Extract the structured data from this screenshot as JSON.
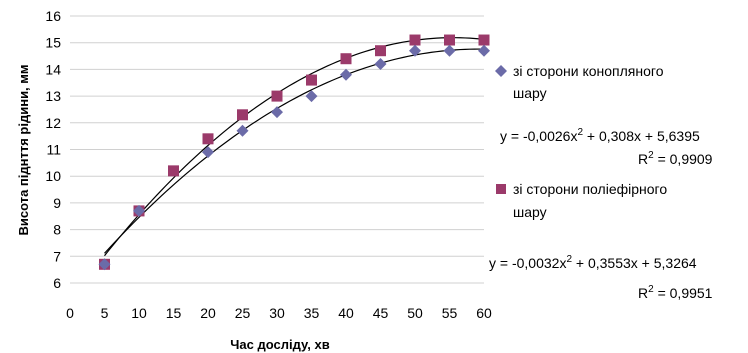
{
  "chart_data": {
    "type": "scatter",
    "xlabel": "Час досліду, хв",
    "ylabel": "Висота піднття рідини, мм",
    "xlim": [
      0,
      60
    ],
    "ylim": [
      6,
      16
    ],
    "x_ticks": [
      0,
      5,
      10,
      15,
      20,
      25,
      30,
      35,
      40,
      45,
      50,
      55,
      60
    ],
    "y_ticks": [
      6,
      7,
      8,
      9,
      10,
      11,
      12,
      13,
      14,
      15,
      16
    ],
    "grid": "horizontal",
    "legend_position": "right",
    "series": [
      {
        "name": "зі сторони конопляного шару",
        "legend_lines": [
          "зі сторони конопляного",
          "шару"
        ],
        "marker": "diamond",
        "color": "#6b6ba8",
        "x": [
          5,
          10,
          20,
          25,
          30,
          35,
          40,
          45,
          50,
          55,
          60
        ],
        "y": [
          6.7,
          8.7,
          10.9,
          11.7,
          12.4,
          13.0,
          13.8,
          14.2,
          14.7,
          14.7,
          14.7
        ],
        "trendline": {
          "equation": "y = -0,0026x² + 0,308x + 5,6395",
          "equation_parts": {
            "lhs": "y = -0,0026x",
            "sup": "2",
            "rhs": " + 0,308x + 5,6395"
          },
          "r2": "R² = 0,9909",
          "r2_parts": {
            "r": "R",
            "sup": "2",
            "rest": " = 0,9909"
          },
          "coefficients": {
            "a": -0.0026,
            "b": 0.308,
            "c": 5.6395
          }
        }
      },
      {
        "name": "зі сторони поліефірного шару",
        "legend_lines": [
          "зі сторони поліефірного",
          "шару"
        ],
        "marker": "square",
        "color": "#9b3a6a",
        "x": [
          5,
          10,
          15,
          20,
          25,
          30,
          35,
          40,
          45,
          50,
          55,
          60
        ],
        "y": [
          6.7,
          8.7,
          10.2,
          11.4,
          12.3,
          13.0,
          13.6,
          14.4,
          14.7,
          15.1,
          15.1,
          15.1
        ],
        "trendline": {
          "equation": "y = -0,0032x² + 0,3553x + 5,3264",
          "equation_parts": {
            "lhs": "y = -0,0032x",
            "sup": "2",
            "rhs": " + 0,3553x + 5,3264"
          },
          "r2": "R² = 0,9951",
          "r2_parts": {
            "r": "R",
            "sup": "2",
            "rest": " = 0,9951"
          },
          "coefficients": {
            "a": -0.0032,
            "b": 0.3553,
            "c": 5.3264
          }
        }
      }
    ]
  }
}
